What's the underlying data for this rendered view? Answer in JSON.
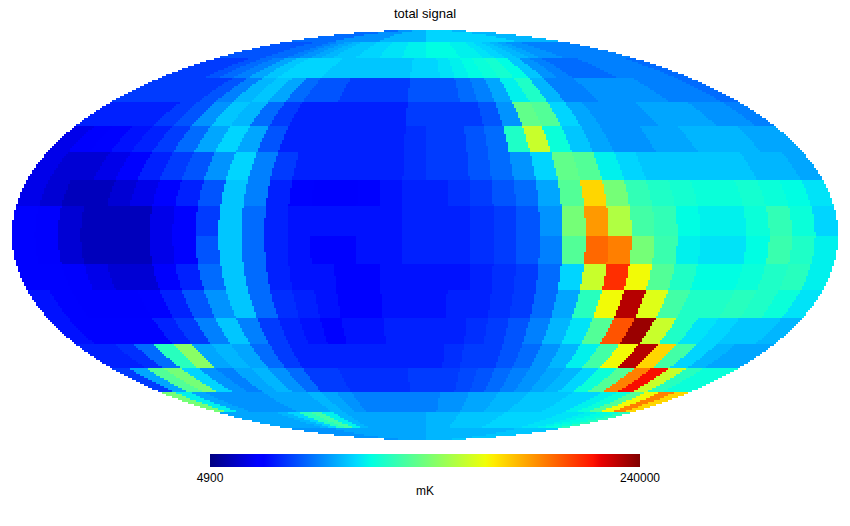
{
  "chart_data": {
    "type": "heatmap",
    "title": "total signal",
    "tick_labels": false,
    "x": [
      -175,
      -165,
      -155,
      -145,
      -135,
      -125,
      -115,
      -105,
      -95,
      -85,
      -75,
      -65,
      -55,
      -45,
      -35,
      -25,
      -15,
      -5,
      5,
      15,
      25,
      35,
      45,
      55,
      65,
      75,
      85,
      95,
      105,
      115,
      125,
      135,
      145,
      155,
      165,
      175
    ],
    "y": [
      85,
      75,
      65,
      55,
      45,
      35,
      25,
      15,
      5,
      -5,
      -15,
      -25,
      -35,
      -45,
      -55,
      -65,
      -75,
      -85
    ],
    "cells": [
      [
        12000,
        12000,
        12000,
        12000,
        12000,
        12000,
        14000,
        14000,
        14000,
        14000,
        14000,
        14000,
        16000,
        16000,
        16000,
        16000,
        16000,
        16000,
        18000,
        18000,
        18000,
        18000,
        18000,
        18000,
        18000,
        18000,
        18000,
        18000,
        18000,
        18000,
        16000,
        16000,
        16000,
        16000,
        16000,
        16000
      ],
      [
        11000,
        11000,
        11000,
        11000,
        12000,
        12000,
        13000,
        14000,
        15000,
        16000,
        17000,
        17000,
        18000,
        18000,
        19000,
        19000,
        20000,
        20000,
        21000,
        21000,
        21000,
        20000,
        20000,
        19000,
        18000,
        17000,
        16000,
        15000,
        14000,
        14000,
        13000,
        13000,
        13000,
        13000,
        13000,
        13000
      ],
      [
        10000,
        10000,
        10000,
        11000,
        12000,
        13000,
        15000,
        17000,
        18000,
        18000,
        18000,
        17000,
        17000,
        17000,
        17000,
        17000,
        17000,
        18000,
        18000,
        19000,
        20000,
        21000,
        22000,
        23000,
        21000,
        17000,
        14000,
        13000,
        12000,
        12000,
        12000,
        13000,
        13000,
        13000,
        13000,
        12000
      ],
      [
        10000,
        10000,
        10000,
        10000,
        10000,
        11000,
        13000,
        16000,
        17000,
        15000,
        12000,
        11000,
        11000,
        10000,
        10000,
        10000,
        10000,
        11000,
        11000,
        11000,
        12000,
        13000,
        15000,
        20000,
        24000,
        16000,
        13000,
        13000,
        14000,
        14000,
        14000,
        14000,
        13000,
        13000,
        13000,
        12000
      ],
      [
        9000,
        9000,
        9000,
        9000,
        10000,
        11000,
        14000,
        17000,
        16000,
        12000,
        10000,
        9000,
        9000,
        9000,
        9000,
        9000,
        9000,
        10000,
        10000,
        10000,
        10000,
        11000,
        14000,
        32000,
        30000,
        18000,
        15000,
        14000,
        14000,
        14000,
        15000,
        15000,
        15000,
        14000,
        14000,
        13000
      ],
      [
        7000,
        7500,
        8000,
        8500,
        9000,
        10000,
        12000,
        15000,
        18000,
        15000,
        11000,
        9000,
        9000,
        9000,
        9000,
        9000,
        9000,
        9500,
        10000,
        10000,
        11000,
        12000,
        24000,
        50000,
        22000,
        17000,
        15000,
        14000,
        14000,
        15000,
        15000,
        16000,
        16000,
        16000,
        15000,
        15000
      ],
      [
        7000,
        6500,
        6500,
        7000,
        8000,
        9000,
        10000,
        11000,
        14000,
        18000,
        13000,
        10000,
        9000,
        9000,
        9000,
        9000,
        9000,
        9500,
        10000,
        10000,
        11000,
        12000,
        14000,
        18000,
        32000,
        30000,
        20000,
        18000,
        17000,
        17000,
        17000,
        17000,
        17000,
        16000,
        16000,
        15000
      ],
      [
        7000,
        6500,
        6000,
        6000,
        6500,
        7000,
        8000,
        9000,
        11000,
        17000,
        13000,
        9000,
        8000,
        7500,
        7500,
        8000,
        8500,
        9000,
        9000,
        9500,
        10000,
        11000,
        12000,
        15000,
        30000,
        70000,
        35000,
        26000,
        24000,
        23000,
        22000,
        22000,
        23000,
        22000,
        21000,
        19000
      ],
      [
        8000,
        7500,
        6500,
        6000,
        6000,
        6000,
        7000,
        8000,
        10000,
        17000,
        12000,
        9000,
        8500,
        8500,
        8500,
        8500,
        8500,
        9000,
        9000,
        9000,
        9500,
        10000,
        11000,
        14000,
        35000,
        90000,
        45000,
        28000,
        26000,
        21000,
        20000,
        20000,
        22000,
        26000,
        22000,
        18000
      ],
      [
        8000,
        7500,
        6500,
        6000,
        6000,
        6000,
        7000,
        8000,
        11000,
        17000,
        12000,
        9000,
        8500,
        8000,
        8000,
        8500,
        8500,
        9000,
        9000,
        9000,
        9500,
        10000,
        11000,
        13000,
        30000,
        110000,
        100000,
        35000,
        27000,
        20000,
        19000,
        19000,
        21000,
        27000,
        24000,
        20000
      ],
      [
        8000,
        8000,
        7500,
        7000,
        6500,
        6500,
        7500,
        9000,
        12000,
        17000,
        12000,
        9000,
        8500,
        8500,
        8000,
        8000,
        8500,
        8500,
        8500,
        8500,
        9000,
        9500,
        10000,
        12000,
        18000,
        50000,
        140000,
        60000,
        30000,
        24000,
        21000,
        21000,
        22000,
        24000,
        25000,
        20000
      ],
      [
        8500,
        8000,
        7500,
        7500,
        7500,
        8000,
        9000,
        11000,
        14000,
        17000,
        12000,
        9500,
        9000,
        8500,
        8000,
        8000,
        8500,
        8500,
        8500,
        9000,
        9000,
        9500,
        10000,
        12000,
        15000,
        25000,
        60000,
        200000,
        55000,
        28000,
        24000,
        24000,
        25000,
        24000,
        22000,
        19000
      ],
      [
        8500,
        8000,
        8000,
        8000,
        8000,
        9000,
        10000,
        13000,
        17000,
        13000,
        10000,
        9000,
        8500,
        8000,
        8500,
        8500,
        9000,
        9000,
        9000,
        9000,
        9500,
        10000,
        11000,
        13000,
        16000,
        19000,
        30000,
        120000,
        220000,
        50000,
        24000,
        19000,
        18000,
        17000,
        17000,
        16000
      ],
      [
        9000,
        9000,
        9500,
        12000,
        25000,
        38000,
        15000,
        16000,
        15000,
        12000,
        10000,
        9000,
        9000,
        9000,
        9000,
        9000,
        9000,
        9000,
        9000,
        9500,
        10000,
        10000,
        11000,
        12000,
        14000,
        16000,
        20000,
        28000,
        60000,
        200000,
        70000,
        28000,
        18000,
        16000,
        15000,
        15000
      ],
      [
        10000,
        15000,
        30000,
        35000,
        18000,
        14000,
        13000,
        15000,
        16000,
        14000,
        12000,
        10000,
        10000,
        9500,
        9500,
        9500,
        9500,
        10000,
        10000,
        10000,
        10500,
        11000,
        12000,
        13000,
        14000,
        15000,
        16000,
        18000,
        22000,
        30000,
        100000,
        160000,
        50000,
        25000,
        22000,
        22000
      ],
      [
        35000,
        20000,
        15000,
        14000,
        14000,
        14000,
        14000,
        15000,
        15000,
        15000,
        16000,
        15000,
        14000,
        13000,
        13000,
        13000,
        13000,
        13000,
        13000,
        14000,
        14000,
        15000,
        15000,
        16000,
        16000,
        17000,
        17000,
        17000,
        18000,
        18000,
        20000,
        22000,
        30000,
        60000,
        100000,
        70000
      ],
      [
        15000,
        15000,
        15000,
        15000,
        15000,
        16000,
        18000,
        25000,
        28000,
        20000,
        16000,
        15000,
        15000,
        15000,
        15000,
        15000,
        15000,
        15000,
        16000,
        16000,
        16000,
        17000,
        17000,
        17000,
        17000,
        18000,
        18000,
        18000,
        18000,
        18000,
        19000,
        19000,
        20000,
        21000,
        22000,
        25000
      ],
      [
        14000,
        14000,
        14000,
        14000,
        14000,
        14000,
        15000,
        15000,
        15000,
        15000,
        15000,
        15000,
        15000,
        15000,
        15000,
        15000,
        15000,
        15000,
        16000,
        16000,
        16000,
        16000,
        16000,
        16000,
        16000,
        16000,
        16000,
        16000,
        16000,
        16000,
        17000,
        17000,
        17000,
        17000,
        17000,
        17000
      ]
    ],
    "colorbar": {
      "range": [
        4900,
        240000
      ],
      "ticks": [
        4900,
        240000
      ],
      "label": "mK",
      "log": true
    }
  }
}
